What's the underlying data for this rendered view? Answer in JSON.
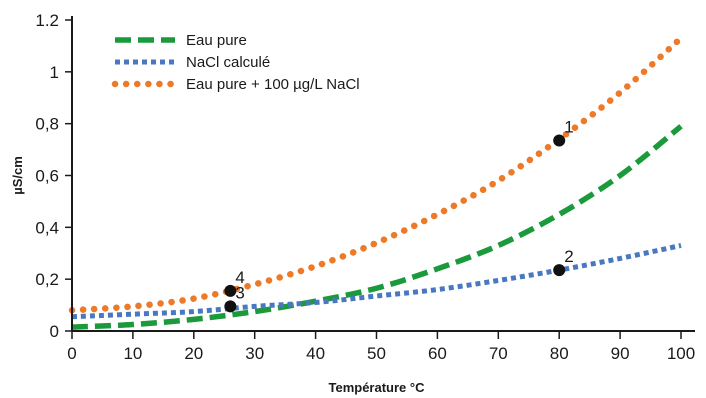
{
  "chart_data": {
    "type": "line",
    "xlabel": "Température °C",
    "ylabel": "µS/cm",
    "xlim": [
      0,
      100
    ],
    "ylim": [
      0,
      1.2
    ],
    "xticks": [
      {
        "value": 0,
        "label": "0"
      },
      {
        "value": 10,
        "label": "10"
      },
      {
        "value": 20,
        "label": "20"
      },
      {
        "value": 30,
        "label": "30"
      },
      {
        "value": 40,
        "label": "40"
      },
      {
        "value": 50,
        "label": "50"
      },
      {
        "value": 60,
        "label": "60"
      },
      {
        "value": 70,
        "label": "70"
      },
      {
        "value": 80,
        "label": "80"
      },
      {
        "value": 90,
        "label": "90"
      },
      {
        "value": 100,
        "label": "100"
      }
    ],
    "yticks": [
      {
        "value": 0,
        "label": "0"
      },
      {
        "value": 0.2,
        "label": "0,2"
      },
      {
        "value": 0.4,
        "label": "0,4"
      },
      {
        "value": 0.6,
        "label": "0,6"
      },
      {
        "value": 0.8,
        "label": "0,8"
      },
      {
        "value": 1.0,
        "label": "1"
      },
      {
        "value": 1.2,
        "label": "1.2"
      }
    ],
    "grid": false,
    "legend_position": "top-left",
    "series": [
      {
        "name": "Eau pure",
        "color": "#1a9a3a",
        "style": "dashed",
        "x": [
          0,
          10,
          20,
          30,
          40,
          50,
          60,
          70,
          80,
          90,
          100
        ],
        "y": [
          0.015,
          0.025,
          0.045,
          0.075,
          0.115,
          0.165,
          0.24,
          0.33,
          0.45,
          0.6,
          0.79
        ]
      },
      {
        "name": "NaCl calculé",
        "color": "#4a78c0",
        "style": "dotted",
        "x": [
          0,
          10,
          20,
          30,
          40,
          50,
          60,
          70,
          80,
          90,
          100
        ],
        "y": [
          0.055,
          0.065,
          0.075,
          0.095,
          0.11,
          0.135,
          0.16,
          0.195,
          0.235,
          0.28,
          0.33
        ]
      },
      {
        "name": "Eau pure + 100 µg/L NaCl",
        "color": "#ec7a28",
        "style": "round-dotted",
        "x": [
          0,
          10,
          20,
          30,
          40,
          50,
          60,
          70,
          80,
          90,
          100
        ],
        "y": [
          0.08,
          0.095,
          0.125,
          0.18,
          0.25,
          0.34,
          0.45,
          0.58,
          0.74,
          0.92,
          1.13
        ]
      }
    ],
    "annotations": [
      {
        "label": "1",
        "x": 80,
        "y": 0.735
      },
      {
        "label": "2",
        "x": 80,
        "y": 0.235
      },
      {
        "label": "3",
        "x": 26,
        "y": 0.095
      },
      {
        "label": "4",
        "x": 26,
        "y": 0.155
      }
    ]
  }
}
